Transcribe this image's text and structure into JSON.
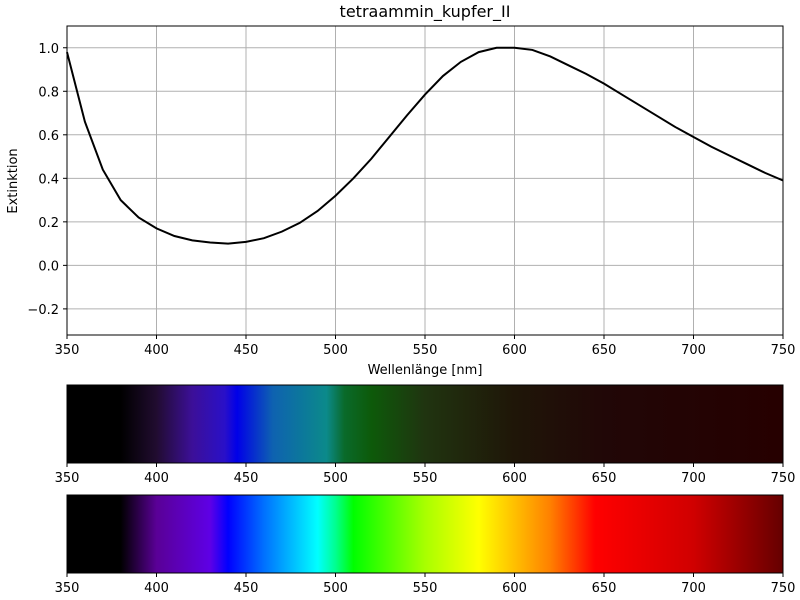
{
  "chart_data": {
    "type": "line",
    "title": "tetraammin_kupfer_II",
    "xlabel": "Wellenlänge [nm]",
    "ylabel": "Extinktion",
    "xlim": [
      350,
      750
    ],
    "ylim": [
      -0.32,
      1.1
    ],
    "grid": true,
    "x_ticks": [
      350,
      400,
      450,
      500,
      550,
      600,
      650,
      700,
      750
    ],
    "y_ticks": [
      -0.2,
      0.0,
      0.2,
      0.4,
      0.6,
      0.8,
      1.0
    ],
    "y_tick_labels": [
      "−0.2",
      "0.0",
      "0.2",
      "0.4",
      "0.6",
      "0.8",
      "1.0"
    ],
    "series": [
      {
        "color": "#000000",
        "x": [
          350,
          360,
          370,
          380,
          390,
          400,
          410,
          420,
          430,
          440,
          450,
          460,
          470,
          480,
          490,
          500,
          510,
          520,
          530,
          540,
          550,
          560,
          570,
          580,
          590,
          600,
          610,
          620,
          630,
          640,
          650,
          660,
          670,
          680,
          690,
          700,
          710,
          720,
          730,
          740,
          750
        ],
        "y": [
          0.98,
          0.66,
          0.44,
          0.3,
          0.22,
          0.17,
          0.135,
          0.115,
          0.105,
          0.1,
          0.108,
          0.125,
          0.155,
          0.195,
          0.25,
          0.32,
          0.4,
          0.49,
          0.59,
          0.69,
          0.785,
          0.87,
          0.935,
          0.98,
          1.0,
          1.0,
          0.99,
          0.96,
          0.92,
          0.88,
          0.835,
          0.785,
          0.735,
          0.685,
          0.635,
          0.59,
          0.545,
          0.505,
          0.465,
          0.425,
          0.39
        ]
      }
    ]
  },
  "spectrum_bars": {
    "xlim": [
      350,
      750
    ],
    "x_ticks": [
      350,
      400,
      450,
      500,
      550,
      600,
      650,
      700,
      750
    ],
    "transmitted": {
      "stops": [
        {
          "nm": 350,
          "color": "#000000"
        },
        {
          "nm": 380,
          "color": "#000000"
        },
        {
          "nm": 400,
          "color": "#210c30"
        },
        {
          "nm": 420,
          "color": "#3c0f98"
        },
        {
          "nm": 438,
          "color": "#2a10c8"
        },
        {
          "nm": 445,
          "color": "#0000e8"
        },
        {
          "nm": 465,
          "color": "#0e62b0"
        },
        {
          "nm": 495,
          "color": "#0b8a8a"
        },
        {
          "nm": 505,
          "color": "#0a6a2a"
        },
        {
          "nm": 520,
          "color": "#0d5a0a"
        },
        {
          "nm": 550,
          "color": "#203410"
        },
        {
          "nm": 600,
          "color": "#1f1608"
        },
        {
          "nm": 650,
          "color": "#210707"
        },
        {
          "nm": 750,
          "color": "#260000"
        }
      ]
    },
    "visible": {
      "stops": [
        {
          "nm": 350,
          "color": "#000000"
        },
        {
          "nm": 380,
          "color": "#000000"
        },
        {
          "nm": 400,
          "color": "#5a0096"
        },
        {
          "nm": 430,
          "color": "#5e00e6"
        },
        {
          "nm": 440,
          "color": "#0000ff"
        },
        {
          "nm": 460,
          "color": "#0070ff"
        },
        {
          "nm": 490,
          "color": "#00ffff"
        },
        {
          "nm": 500,
          "color": "#00ff90"
        },
        {
          "nm": 510,
          "color": "#00ff00"
        },
        {
          "nm": 550,
          "color": "#a8ff00"
        },
        {
          "nm": 580,
          "color": "#ffff00"
        },
        {
          "nm": 620,
          "color": "#ff8000"
        },
        {
          "nm": 645,
          "color": "#ff0000"
        },
        {
          "nm": 700,
          "color": "#d00000"
        },
        {
          "nm": 750,
          "color": "#650000"
        }
      ]
    }
  }
}
